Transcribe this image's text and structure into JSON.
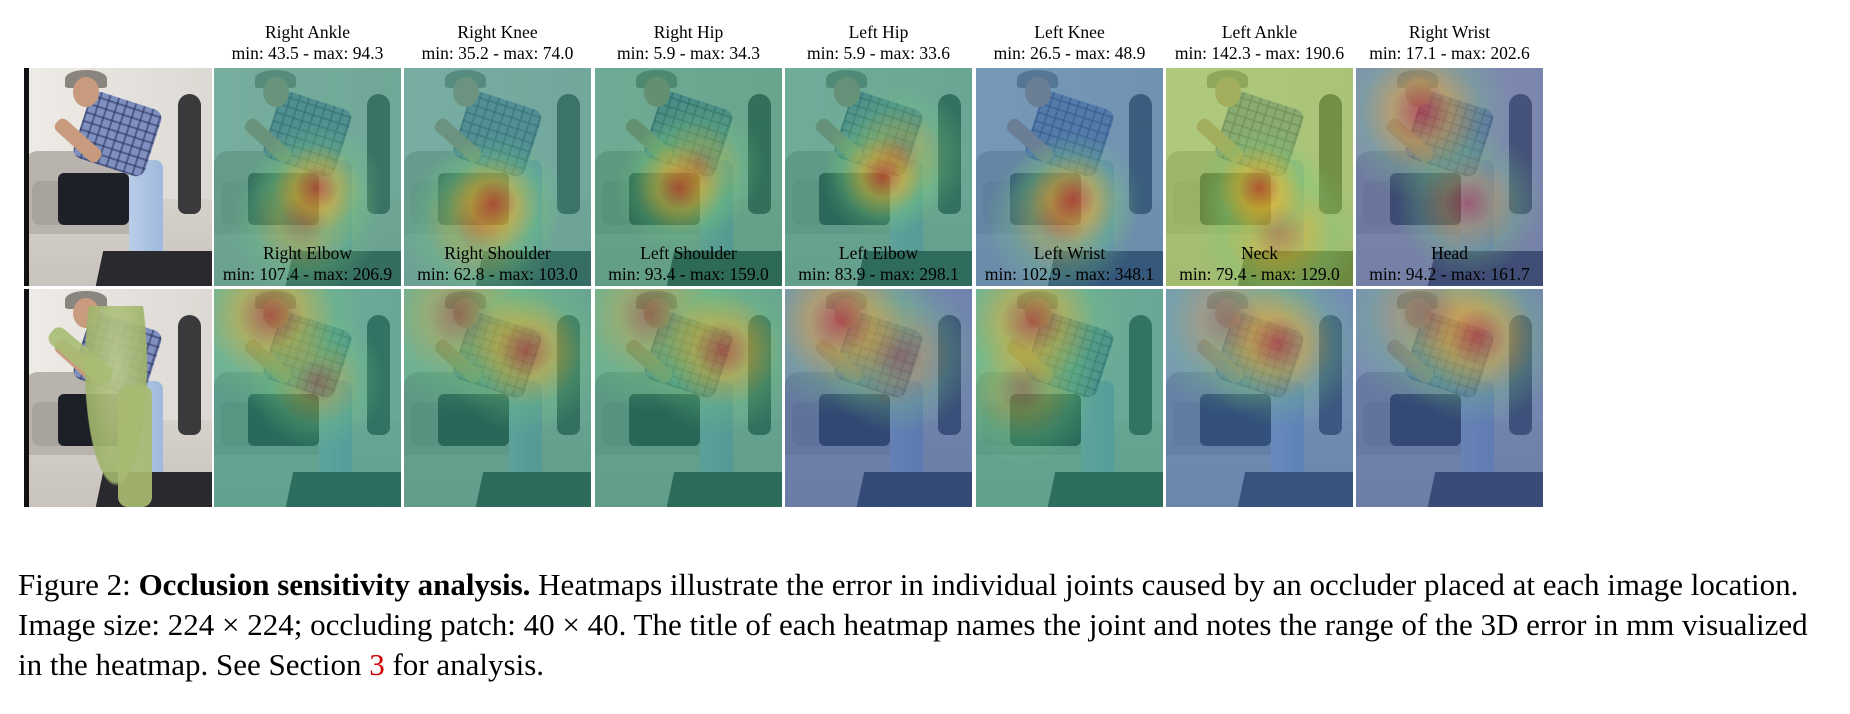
{
  "figure": {
    "rows": [
      {
        "cells": [
          {
            "kind": "input",
            "title": "",
            "range": ""
          },
          {
            "kind": "heatmap",
            "title": "Right Ankle",
            "range": "min: 43.5 - max: 94.3",
            "tint": "#3a8f7a",
            "hot": [
              [
                55,
                55
              ],
              [
                48,
                70
              ]
            ]
          },
          {
            "kind": "heatmap",
            "title": "Right Knee",
            "range": "min: 35.2 - max: 74.0",
            "tint": "#3c8f80",
            "hot": [
              [
                48,
                62
              ],
              [
                40,
                72
              ]
            ]
          },
          {
            "kind": "heatmap",
            "title": "Right Hip",
            "range": "min: 5.9 - max: 34.3",
            "tint": "#2f8a6a",
            "hot": [
              [
                45,
                55
              ],
              [
                55,
                45
              ]
            ]
          },
          {
            "kind": "heatmap",
            "title": "Left Hip",
            "range": "min: 5.9 - max: 33.6",
            "tint": "#328c74",
            "hot": [
              [
                52,
                50
              ],
              [
                60,
                40
              ]
            ]
          },
          {
            "kind": "heatmap",
            "title": "Left Knee",
            "range": "min: 26.5 - max: 48.9",
            "tint": "#3b6fa0",
            "hot": [
              [
                52,
                60
              ],
              [
                45,
                70
              ]
            ]
          },
          {
            "kind": "heatmap",
            "title": "Left Ankle",
            "range": "min: 142.3 - max: 190.6",
            "tint": "#8fb84a",
            "hot": [
              [
                50,
                55
              ],
              [
                60,
                75
              ]
            ]
          },
          {
            "kind": "heatmap",
            "title": "Right Wrist",
            "range": "min: 17.1 - max: 202.6",
            "tint": "#4a5e9a",
            "hot": [
              [
                35,
                20
              ],
              [
                60,
                62
              ]
            ]
          }
        ]
      },
      {
        "cells": [
          {
            "kind": "mesh",
            "title": "",
            "range": ""
          },
          {
            "kind": "heatmap",
            "title": "Right Elbow",
            "range": "min: 107.4 - max: 206.9",
            "tint": "#2f8f78",
            "hot": [
              [
                30,
                12
              ],
              [
                55,
                42
              ]
            ]
          },
          {
            "kind": "heatmap",
            "title": "Right Shoulder",
            "range": "min: 62.8 - max: 103.0",
            "tint": "#2f8a72",
            "hot": [
              [
                65,
                28
              ],
              [
                30,
                12
              ]
            ]
          },
          {
            "kind": "heatmap",
            "title": "Left Shoulder",
            "range": "min: 93.4 - max: 159.0",
            "tint": "#2d8a70",
            "hot": [
              [
                68,
                28
              ],
              [
                30,
                12
              ]
            ]
          },
          {
            "kind": "heatmap",
            "title": "Left Elbow",
            "range": "min: 83.9 - max: 298.1",
            "tint": "#3a5a9a",
            "hot": [
              [
                30,
                15
              ],
              [
                60,
                30
              ]
            ]
          },
          {
            "kind": "heatmap",
            "title": "Left Wrist",
            "range": "min: 102.9 - max: 348.1",
            "tint": "#2f8f76",
            "hot": [
              [
                30,
                15
              ],
              [
                25,
                45
              ]
            ]
          },
          {
            "kind": "heatmap",
            "title": "Neck",
            "range": "min: 79.4 - max: 129.0",
            "tint": "#3d68a4",
            "hot": [
              [
                60,
                25
              ],
              [
                35,
                15
              ]
            ]
          },
          {
            "kind": "heatmap",
            "title": "Head",
            "range": "min: 94.2 - max: 161.7",
            "tint": "#3f5d9c",
            "hot": [
              [
                65,
                22
              ],
              [
                40,
                12
              ]
            ]
          }
        ]
      }
    ]
  },
  "caption": {
    "label": "Figure 2:",
    "bold": "Occlusion sensitivity analysis.",
    "text_before_ref": "Heatmaps illustrate the error in individual joints caused by an occluder placed at each image location. Image size: 224 × 224; occluding patch: 40 × 40. The title of each heatmap names the joint and notes the range of the 3D error in mm visualized in the heatmap. See Section",
    "ref": "3",
    "text_after_ref": "for analysis."
  }
}
